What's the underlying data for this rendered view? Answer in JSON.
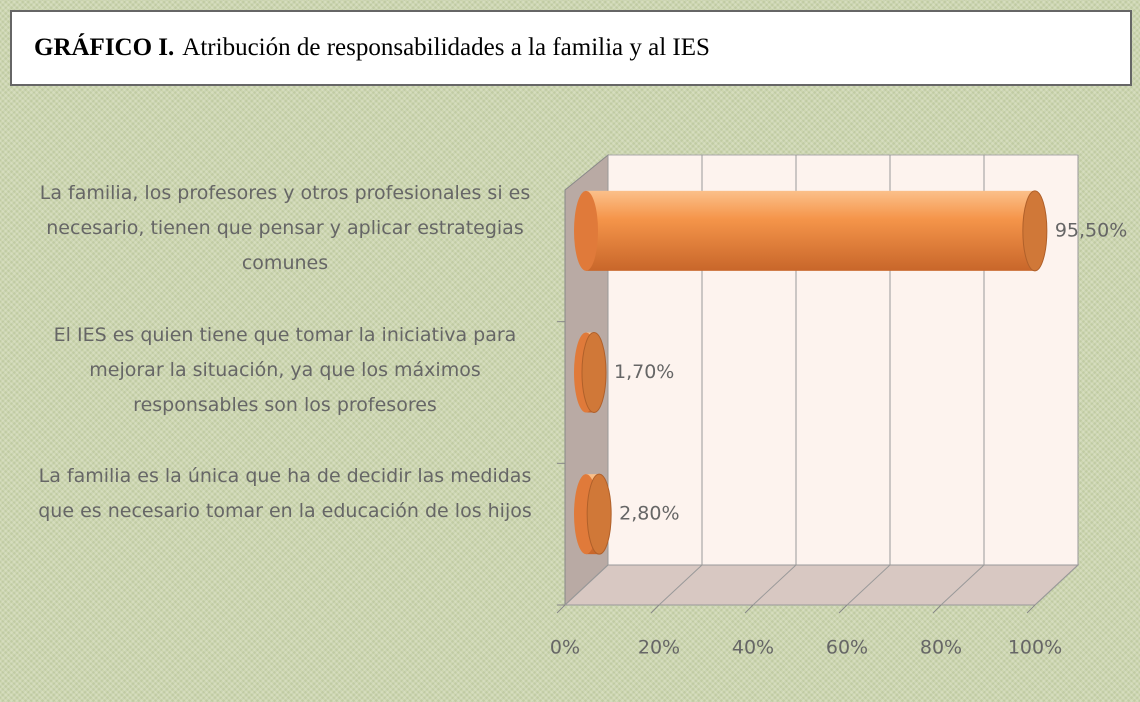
{
  "chart_data": {
    "type": "bar",
    "orientation": "horizontal",
    "title_label": "GRÁFICO I.",
    "title": "Atribución de responsabilidades a la familia y al IES",
    "categories": [
      "La familia, los profesores y otros profesionales si es necesario, tienen que pensar y aplicar estrategias comunes",
      "El IES es quien tiene que tomar la iniciativa para mejorar la situación, ya que los máximos responsables son los profesores",
      "La familia es la única que ha de decidir las medidas que es necesario tomar en la educación de los hijos"
    ],
    "values": [
      95.5,
      1.7,
      2.8
    ],
    "value_labels": [
      "95,50%",
      "1,70%",
      "2,80%"
    ],
    "color": "#f5954a",
    "xlim": [
      0,
      100
    ],
    "xticks": [
      {
        "value": 0,
        "label": "0%"
      },
      {
        "value": 20,
        "label": "20%"
      },
      {
        "value": 40,
        "label": "40%"
      },
      {
        "value": 60,
        "label": "60%"
      },
      {
        "value": 80,
        "label": "80%"
      },
      {
        "value": 100,
        "label": "100%"
      }
    ],
    "grid": true
  }
}
